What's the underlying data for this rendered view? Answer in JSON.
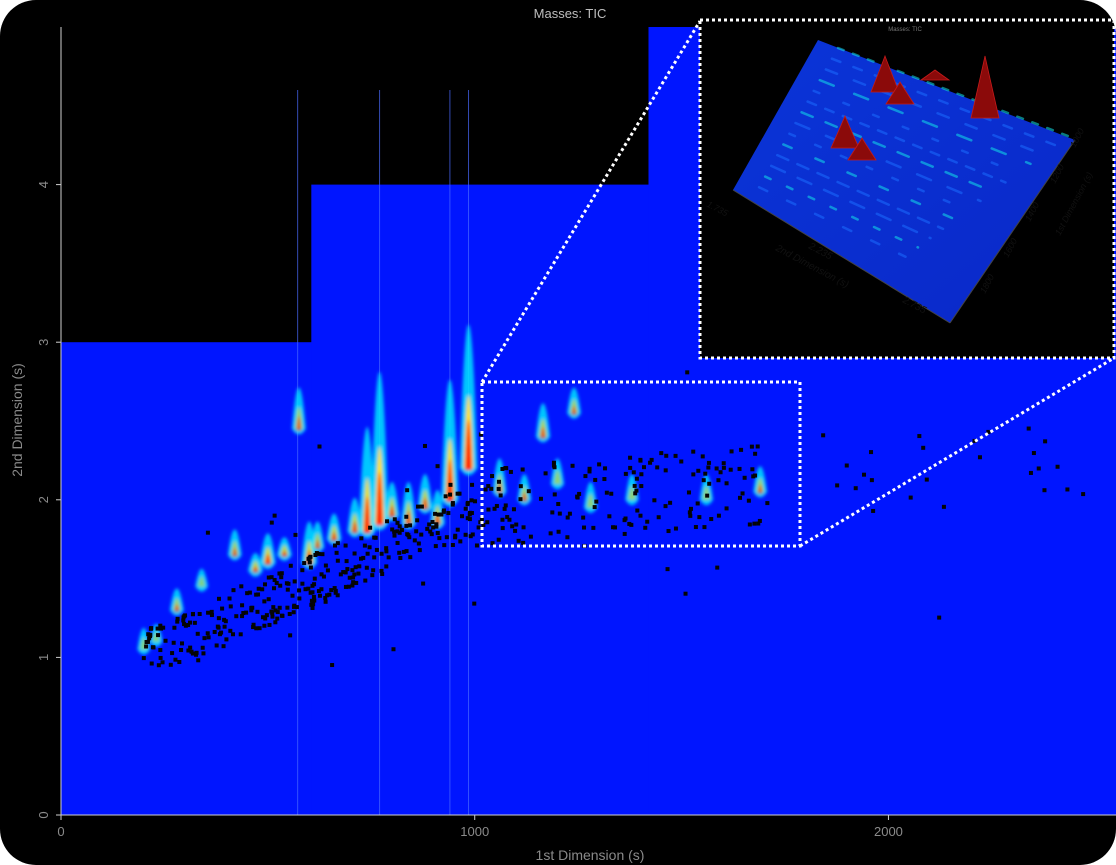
{
  "chart_data": [
    {
      "type": "heatmap",
      "title": "Masses: TIC",
      "xlabel": "1st Dimension (s)",
      "ylabel": "2nd Dimension (s)",
      "xlim": [
        0,
        2550
      ],
      "ylim": [
        0,
        5
      ],
      "x_ticks": [
        "0",
        "1000",
        "2000"
      ],
      "x_tick_values": [
        0,
        1000,
        2000
      ],
      "y_ticks": [
        "0",
        "1",
        "2",
        "3",
        "4"
      ],
      "y_tick_values": [
        0,
        1,
        2,
        3,
        4
      ],
      "colors": {
        "background": "#000000",
        "signal_low": "#0015ff",
        "signal_mid": "#00e5ff",
        "signal_high": "#ff2010"
      },
      "acquisition_steps": [
        {
          "x_start": 0,
          "x_end": 605,
          "y_max": 3
        },
        {
          "x_start": 605,
          "x_end": 1420,
          "y_max": 4
        },
        {
          "x_start": 1420,
          "x_end": 2550,
          "y_max": 5
        }
      ],
      "peaks": [
        {
          "x": 200,
          "y": 1.05,
          "height": 0.25,
          "intensity": 0.5
        },
        {
          "x": 230,
          "y": 1.1,
          "height": 0.2,
          "intensity": 0.5
        },
        {
          "x": 280,
          "y": 1.3,
          "height": 0.25,
          "intensity": 0.6
        },
        {
          "x": 340,
          "y": 1.45,
          "height": 0.2,
          "intensity": 0.5
        },
        {
          "x": 420,
          "y": 1.65,
          "height": 0.3,
          "intensity": 0.6
        },
        {
          "x": 470,
          "y": 1.55,
          "height": 0.2,
          "intensity": 0.7
        },
        {
          "x": 500,
          "y": 1.6,
          "height": 0.35,
          "intensity": 0.8
        },
        {
          "x": 540,
          "y": 1.65,
          "height": 0.2,
          "intensity": 0.7
        },
        {
          "x": 575,
          "y": 2.45,
          "height": 0.5,
          "intensity": 0.6
        },
        {
          "x": 600,
          "y": 1.6,
          "height": 0.5,
          "intensity": 0.8
        },
        {
          "x": 620,
          "y": 1.7,
          "height": 0.3,
          "intensity": 0.6
        },
        {
          "x": 660,
          "y": 1.75,
          "height": 0.3,
          "intensity": 0.7
        },
        {
          "x": 710,
          "y": 1.8,
          "height": 0.4,
          "intensity": 0.7
        },
        {
          "x": 740,
          "y": 1.8,
          "height": 1.3,
          "intensity": 0.9
        },
        {
          "x": 770,
          "y": 1.85,
          "height": 1.9,
          "intensity": 1.0
        },
        {
          "x": 800,
          "y": 1.9,
          "height": 0.4,
          "intensity": 0.7
        },
        {
          "x": 840,
          "y": 1.85,
          "height": 0.5,
          "intensity": 0.7
        },
        {
          "x": 880,
          "y": 1.95,
          "height": 0.4,
          "intensity": 0.7
        },
        {
          "x": 910,
          "y": 1.85,
          "height": 0.4,
          "intensity": 0.7
        },
        {
          "x": 940,
          "y": 2.0,
          "height": 1.5,
          "intensity": 0.95
        },
        {
          "x": 985,
          "y": 2.2,
          "height": 1.8,
          "intensity": 1.0
        },
        {
          "x": 1060,
          "y": 2.05,
          "height": 0.4,
          "intensity": 0.6
        },
        {
          "x": 1120,
          "y": 2.0,
          "height": 0.3,
          "intensity": 0.6
        },
        {
          "x": 1165,
          "y": 2.4,
          "height": 0.4,
          "intensity": 0.65
        },
        {
          "x": 1200,
          "y": 2.1,
          "height": 0.3,
          "intensity": 0.55
        },
        {
          "x": 1240,
          "y": 2.55,
          "height": 0.3,
          "intensity": 0.6
        },
        {
          "x": 1280,
          "y": 1.95,
          "height": 0.3,
          "intensity": 0.55
        },
        {
          "x": 1380,
          "y": 2.0,
          "height": 0.3,
          "intensity": 0.55
        },
        {
          "x": 1560,
          "y": 2.0,
          "height": 0.3,
          "intensity": 0.55
        },
        {
          "x": 1690,
          "y": 2.05,
          "height": 0.3,
          "intensity": 0.6
        }
      ],
      "zoom_region": {
        "x_range": [
          1000,
          1800
        ],
        "y_range": [
          1.7,
          2.75
        ]
      },
      "inset": {
        "title": "Masses: TIC",
        "xlabel": "2nd Dimension (s)",
        "ylabel": "1st Dimension (s)",
        "x_ticks": [
          "1.735",
          "2.235",
          "2.735"
        ],
        "y_ticks": [
          "1000",
          "1200",
          "1400",
          "1600",
          "1800"
        ]
      }
    }
  ]
}
